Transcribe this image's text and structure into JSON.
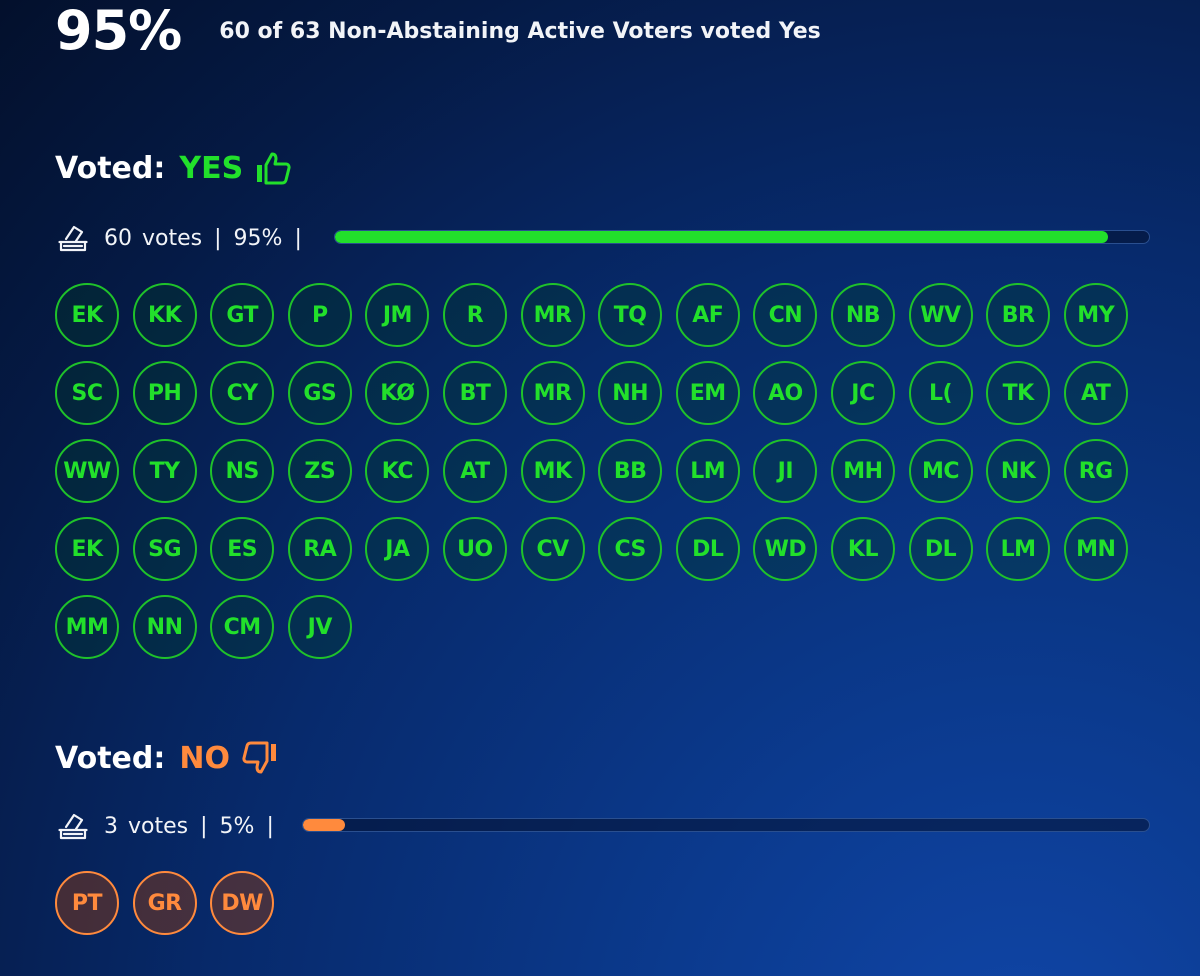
{
  "header": {
    "percent": "95%",
    "summary": "60 of 63 Non-Abstaining Active Voters voted Yes"
  },
  "colors": {
    "yes": "#22e02b",
    "no": "#ff8a3d"
  },
  "yes": {
    "label": "Voted:",
    "choice": "YES",
    "icon": "thumbs-up-icon",
    "votes": "60",
    "votes_word": "votes",
    "percent": "95%",
    "fill_percent": 95,
    "voters": [
      "EK",
      "KK",
      "GT",
      "P",
      "JM",
      "R",
      "MR",
      "TQ",
      "AF",
      "CN",
      "NB",
      "WV",
      "BR",
      "MY",
      "SC",
      "PH",
      "CY",
      "GS",
      "KØ",
      "BT",
      "MR",
      "NH",
      "EM",
      "AO",
      "JC",
      "L(",
      "TK",
      "AT",
      "WW",
      "TY",
      "NS",
      "ZS",
      "KC",
      "AT",
      "MK",
      "BB",
      "LM",
      "JI",
      "MH",
      "MC",
      "NK",
      "RG",
      "EK",
      "SG",
      "ES",
      "RA",
      "JA",
      "UO",
      "CV",
      "CS",
      "DL",
      "WD",
      "KL",
      "DL",
      "LM",
      "MN",
      "MM",
      "NN",
      "CM",
      "JV"
    ]
  },
  "no": {
    "label": "Voted:",
    "choice": "NO",
    "icon": "thumbs-down-icon",
    "votes": "3",
    "votes_word": "votes",
    "percent": "5%",
    "fill_percent": 5,
    "voters": [
      "PT",
      "GR",
      "DW"
    ]
  }
}
